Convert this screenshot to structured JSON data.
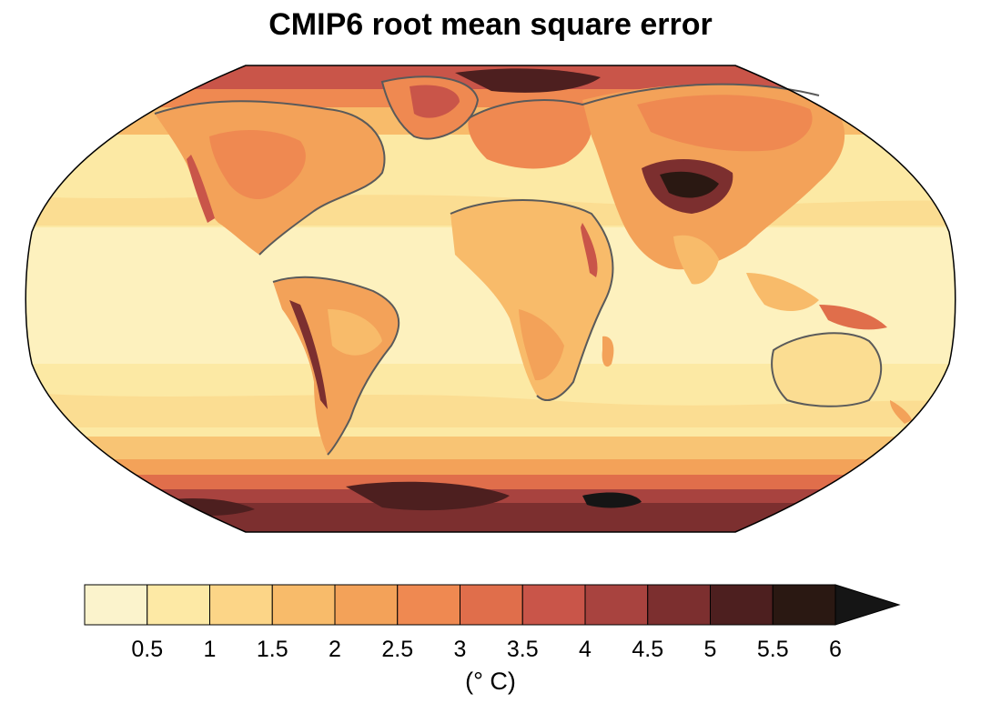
{
  "title": "CMIP6 root mean square error",
  "colorbar": {
    "units": "(° C)",
    "ticks": [
      "0.5",
      "1",
      "1.5",
      "2",
      "2.5",
      "3",
      "3.5",
      "4",
      "4.5",
      "5",
      "5.5",
      "6"
    ],
    "colors": [
      "#fbf3cc",
      "#fde9a5",
      "#fcd587",
      "#f8bb6a",
      "#f3a259",
      "#ef8951",
      "#e06e4b",
      "#c95549",
      "#a8433f",
      "#7c2f2f",
      "#4d1f1f",
      "#2a1812"
    ],
    "extend_color": "#151515",
    "extends": "max"
  },
  "map": {
    "projection": "Robinson",
    "ocean_base_color": "#fce9a4",
    "coastline_color": "#5a5a5a"
  }
}
